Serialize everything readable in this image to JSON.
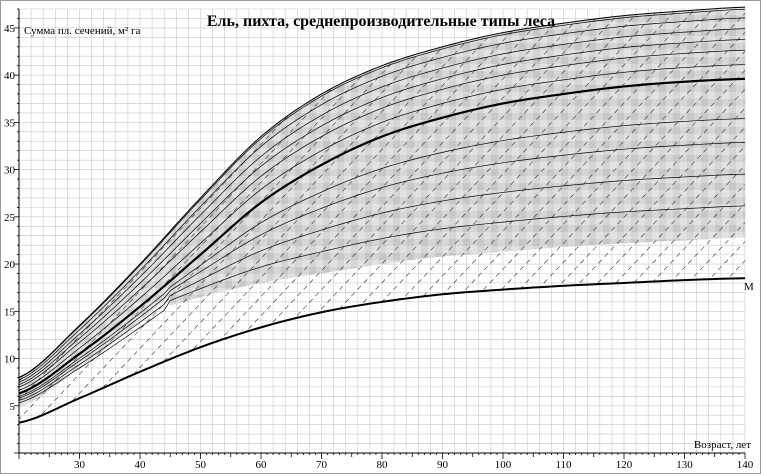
{
  "chart_data": {
    "type": "line",
    "title": "Ель, пихта, среднепроизводительные типы леса",
    "ylabel": "Сумма пл. сечений, м² га",
    "xlabel": "Возраст, лет",
    "xlim": [
      20,
      140
    ],
    "ylim": [
      0,
      47
    ],
    "xticks": [
      "30",
      "40",
      "50",
      "60",
      "70",
      "80",
      "90",
      "100",
      "110",
      "120",
      "130",
      "140"
    ],
    "yticks": [
      "5",
      "10",
      "15",
      "20",
      "25",
      "30",
      "35",
      "40",
      "45"
    ],
    "grid": true,
    "x": [
      20,
      30,
      40,
      50,
      60,
      70,
      80,
      90,
      100,
      110,
      120,
      130,
      140
    ],
    "series": [
      {
        "name": "",
        "role": "upper-envelope",
        "values": [
          8.0,
          13.5,
          20.0,
          27.0,
          33.5,
          38.0,
          41.0,
          43.0,
          44.5,
          45.5,
          46.3,
          46.8,
          47.2
        ]
      },
      {
        "name": "",
        "role": "median-bold",
        "values": [
          6.3,
          10.5,
          15.5,
          21.0,
          26.5,
          30.5,
          33.5,
          35.5,
          37.0,
          38.0,
          38.8,
          39.3,
          39.6
        ]
      },
      {
        "name": "M",
        "role": "lower-bold",
        "values": [
          3.2,
          5.8,
          8.6,
          11.2,
          13.3,
          14.9,
          16.0,
          16.8,
          17.3,
          17.7,
          18.0,
          18.3,
          18.5
        ]
      }
    ],
    "band": {
      "upper": [
        8.0,
        13.5,
        20.0,
        27.0,
        33.5,
        38.0,
        41.0,
        43.0,
        44.5,
        45.5,
        46.3,
        46.8,
        47.2
      ],
      "lower": [
        null,
        null,
        null,
        16.5,
        18.0,
        19.0,
        20.0,
        20.8,
        21.3,
        21.8,
        22.2,
        22.5,
        22.8
      ],
      "x_start": 45
    },
    "curve_family_offsets": [
      -0.8,
      -0.6,
      -0.4,
      -0.25,
      0.2,
      0.4,
      0.55,
      0.7,
      0.85,
      0.97
    ],
    "hatch": "diagonal dashed"
  }
}
